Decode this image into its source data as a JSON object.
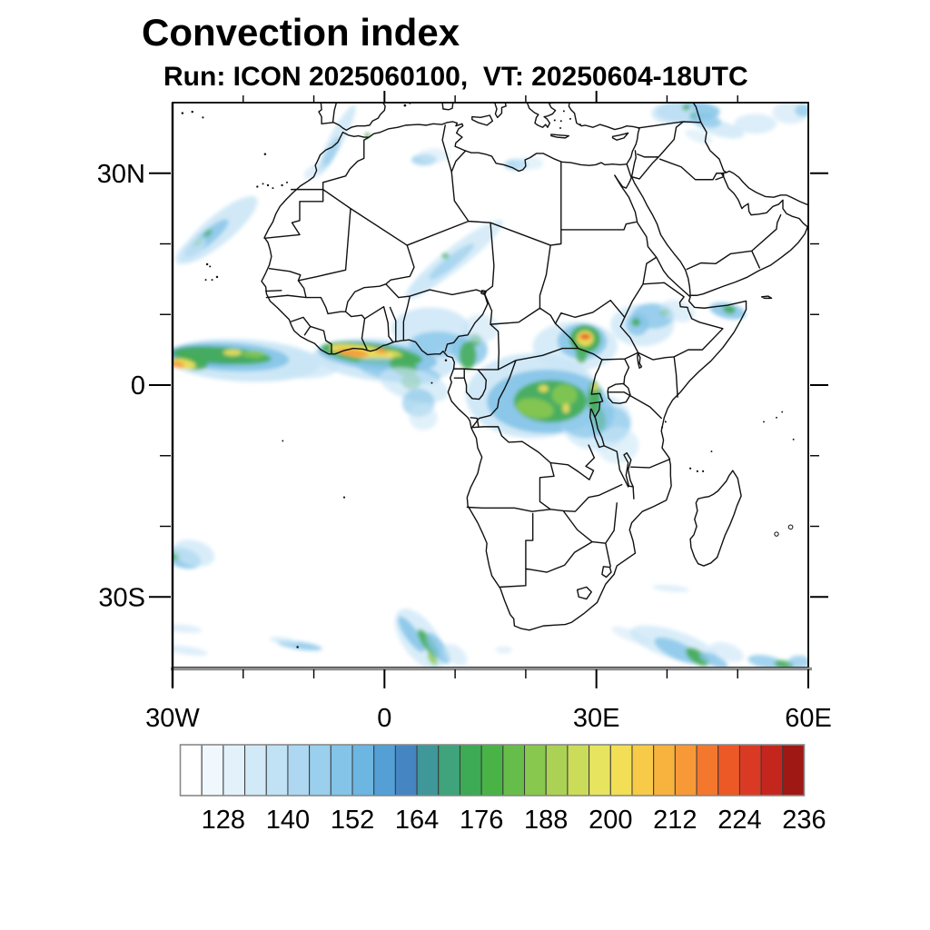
{
  "header": {
    "title": "Convection index",
    "subtitle": "Run: ICON 2025060100,  VT: 20250604-18UTC"
  },
  "chart_data": {
    "type": "heatmap",
    "title": "Convection index",
    "model_run_label": "Run: ICON 2025060100",
    "valid_time_label": "VT: 20250604-18UTC",
    "projection": "cylindrical lat-lon map of Africa",
    "extent": {
      "lon_min": -30,
      "lon_max": 60,
      "lat_min": -40,
      "lat_max": 40
    },
    "xticks_major": [
      -30,
      0,
      30,
      60
    ],
    "xtick_labels": [
      "30W",
      "0",
      "30E",
      "60E"
    ],
    "yticks_major": [
      30,
      0,
      -30
    ],
    "ytick_labels": [
      "30N",
      "0",
      "30S"
    ],
    "minor_tick_step_deg": 10,
    "grid": "off",
    "colorbar": {
      "orientation": "horizontal",
      "value_min": 120,
      "value_max": 236,
      "cell_step": 4,
      "cell_count": 29,
      "labels": [
        "128",
        "140",
        "152",
        "164",
        "176",
        "188",
        "200",
        "212",
        "224",
        "236"
      ],
      "label_values": [
        128,
        140,
        152,
        164,
        176,
        188,
        200,
        212,
        224,
        236
      ],
      "colors": [
        "#ffffff",
        "#f0f8fd",
        "#e2f1fa",
        "#d2e9f7",
        "#c1e1f4",
        "#aed8f1",
        "#9acfed",
        "#84c4e8",
        "#6cb6e1",
        "#539fd6",
        "#4585c2",
        "#3f9799",
        "#3fa47b",
        "#3daa55",
        "#49b445",
        "#67bd49",
        "#89c84e",
        "#abd255",
        "#cbdc5b",
        "#e7e45f",
        "#f2df55",
        "#f7cb47",
        "#f8b23e",
        "#f89937",
        "#f4772e",
        "#ed5827",
        "#da3a23",
        "#c4261e",
        "#9f1814"
      ]
    },
    "palette_keys": {
      "L": "#c9e5f6",
      "M": "#84c4e8",
      "D": "#539fd6",
      "G": "#43ac52",
      "g": "#8cc94f",
      "Y": "#efe05c",
      "O": "#f89937",
      "R": "#da3a23"
    },
    "blob_format": [
      "color_key",
      "lon",
      "lat",
      "rx_deg",
      "ry_deg",
      "rotate_deg",
      "opacity"
    ],
    "field_blobs": [
      [
        "L",
        -20,
        3.5,
        11,
        3,
        -3,
        0.9
      ],
      [
        "L",
        -13,
        3,
        6.5,
        2,
        -5,
        0.7
      ],
      [
        "M",
        -22,
        4,
        8.5,
        2,
        -3,
        0.9
      ],
      [
        "D",
        -24.5,
        4.2,
        6,
        1.3,
        -4,
        0.8
      ],
      [
        "G",
        -23,
        4.2,
        7,
        1.2,
        -4,
        0.9
      ],
      [
        "G",
        -27.5,
        3.2,
        2.5,
        1,
        -10,
        0.9
      ],
      [
        "Y",
        -28.5,
        3,
        1.8,
        0.7,
        -10,
        0.95
      ],
      [
        "O",
        -29.3,
        2.9,
        1,
        0.45,
        -10,
        0.9
      ],
      [
        "Y",
        -21.5,
        4.6,
        1.3,
        0.45,
        0,
        0.9
      ],
      [
        "g",
        -18.5,
        4.4,
        1.6,
        0.5,
        0,
        0.8
      ],
      [
        "L",
        0,
        3.5,
        10,
        3,
        -5,
        0.85
      ],
      [
        "M",
        -1,
        4.1,
        8.5,
        2,
        -6,
        0.9
      ],
      [
        "G",
        -1.8,
        4.4,
        7.2,
        1.5,
        -7,
        0.9
      ],
      [
        "Y",
        -3.2,
        4.7,
        4.6,
        0.9,
        -8,
        0.95
      ],
      [
        "O",
        -4.5,
        4.6,
        2.3,
        0.5,
        -8,
        0.95
      ],
      [
        "O",
        -0.5,
        4.8,
        1,
        0.35,
        -8,
        0.85
      ],
      [
        "Y",
        1.4,
        4.3,
        1.2,
        0.5,
        -15,
        0.85
      ],
      [
        "M",
        2,
        2,
        6,
        1.6,
        -10,
        0.7
      ],
      [
        "G",
        2.7,
        2.7,
        2,
        1.3,
        -20,
        0.85
      ],
      [
        "G",
        3.8,
        0.5,
        1.4,
        1.1,
        0,
        0.75
      ],
      [
        "L",
        4.2,
        0,
        5,
        2.2,
        -15,
        0.7
      ],
      [
        "M",
        4.8,
        -2.5,
        2.3,
        2,
        0,
        0.6
      ],
      [
        "L",
        5.5,
        -4.6,
        2,
        1.8,
        0,
        0.55
      ],
      [
        "L",
        6.5,
        8,
        5.5,
        3,
        0,
        0.8
      ],
      [
        "M",
        7.5,
        5.8,
        4,
        1.8,
        0,
        0.75
      ],
      [
        "M",
        12,
        5,
        2.6,
        2.3,
        0,
        0.8
      ],
      [
        "G",
        11.8,
        4.2,
        1.2,
        2,
        0,
        0.85
      ],
      [
        "G",
        12.9,
        6.4,
        0.8,
        0.8,
        0,
        0.8
      ],
      [
        "L",
        13.6,
        8,
        2.6,
        2,
        0,
        0.6
      ],
      [
        "L",
        21,
        -1.5,
        9.5,
        6,
        0,
        0.85
      ],
      [
        "M",
        23,
        -2.3,
        8.5,
        4.5,
        0,
        0.9
      ],
      [
        "L",
        30,
        -5.2,
        5,
        4,
        0,
        0.7
      ],
      [
        "M",
        28.5,
        -4,
        4,
        3.5,
        0,
        0.7
      ],
      [
        "G",
        23.5,
        -2.3,
        5.2,
        3,
        0,
        0.9
      ],
      [
        "g",
        21.3,
        -3.3,
        2.7,
        1.4,
        -10,
        0.85
      ],
      [
        "g",
        25.5,
        -1.4,
        1.8,
        1.5,
        0,
        0.8
      ],
      [
        "Y",
        22.5,
        -0.5,
        0.7,
        0.5,
        0,
        0.9
      ],
      [
        "Y",
        25.7,
        -3.3,
        0.5,
        0.7,
        0,
        0.9
      ],
      [
        "G",
        29.7,
        -1.8,
        0.9,
        2.4,
        0,
        0.9
      ],
      [
        "Y",
        29.8,
        -0.3,
        0.5,
        0.6,
        0,
        0.8
      ],
      [
        "G",
        30.3,
        -4.8,
        1,
        1.7,
        10,
        0.8
      ],
      [
        "M",
        32,
        -5.5,
        2.8,
        2.5,
        0,
        0.6
      ],
      [
        "L",
        33,
        -8.5,
        3,
        2.6,
        0,
        0.55
      ],
      [
        "L",
        27,
        5.5,
        6,
        3.5,
        0,
        0.75
      ],
      [
        "M",
        28,
        6.2,
        3.5,
        2.5,
        0,
        0.85
      ],
      [
        "G",
        28.4,
        6.5,
        2.2,
        2,
        0,
        0.95
      ],
      [
        "Y",
        28.4,
        6.6,
        1.2,
        1.1,
        0,
        0.95
      ],
      [
        "O",
        28.4,
        6.8,
        0.85,
        0.5,
        0,
        0.95
      ],
      [
        "R",
        28.4,
        6.9,
        0.7,
        0.25,
        0,
        0.95
      ],
      [
        "G",
        27.9,
        4.3,
        0.8,
        1.2,
        0,
        0.8
      ],
      [
        "L",
        36.5,
        8.5,
        4.5,
        3,
        0,
        0.75
      ],
      [
        "M",
        38,
        9.8,
        3,
        1.8,
        0,
        0.75
      ],
      [
        "M",
        35.8,
        8.6,
        1.6,
        1.6,
        0,
        0.8
      ],
      [
        "G",
        35.6,
        8.9,
        0.6,
        0.6,
        0,
        0.9
      ],
      [
        "G",
        39.7,
        10.3,
        0.6,
        0.5,
        0,
        0.85
      ],
      [
        "L",
        41.5,
        10.5,
        2.5,
        1.5,
        -15,
        0.6
      ],
      [
        "M",
        48.6,
        10.5,
        2.6,
        1.1,
        -12,
        0.85
      ],
      [
        "G",
        48.8,
        10.7,
        0.9,
        0.55,
        -12,
        0.9
      ],
      [
        "L",
        -23.5,
        22,
        7,
        2,
        40,
        0.85
      ],
      [
        "M",
        -25.2,
        20.8,
        4,
        1,
        40,
        0.8
      ],
      [
        "G",
        -26.4,
        20.2,
        0.8,
        0.4,
        40,
        0.85
      ],
      [
        "G",
        -25,
        21.5,
        0.7,
        0.35,
        40,
        0.8
      ],
      [
        "L",
        -27.5,
        19,
        2.6,
        1.2,
        40,
        0.7
      ],
      [
        "L",
        10,
        18,
        8.5,
        1.6,
        38,
        0.75
      ],
      [
        "L",
        6.5,
        15,
        4.5,
        1.2,
        38,
        0.6
      ],
      [
        "M",
        9.5,
        17.5,
        4,
        0.8,
        38,
        0.5
      ],
      [
        "G",
        8.6,
        18.3,
        0.5,
        0.4,
        0,
        0.75
      ],
      [
        "L",
        -6.8,
        34.8,
        5.5,
        1,
        62,
        0.8
      ],
      [
        "M",
        -7.6,
        32.8,
        2.6,
        0.7,
        62,
        0.6
      ],
      [
        "L",
        -9.8,
        30.3,
        1.8,
        0.9,
        30,
        0.6
      ],
      [
        "G",
        -2.4,
        35.4,
        0.45,
        0.3,
        0,
        0.85
      ],
      [
        "M",
        5.6,
        31.9,
        1.8,
        0.8,
        0,
        0.65
      ],
      [
        "L",
        7,
        32.5,
        2.2,
        1,
        0,
        0.5
      ],
      [
        "M",
        18.6,
        31.2,
        1.7,
        0.8,
        0,
        0.6
      ],
      [
        "L",
        20.5,
        31.4,
        2,
        0.9,
        0,
        0.5
      ],
      [
        "M",
        43,
        38.7,
        4.5,
        1.5,
        0,
        0.85
      ],
      [
        "L",
        40.8,
        38.5,
        3,
        1.6,
        0,
        0.8
      ],
      [
        "G",
        42.7,
        39.3,
        0.5,
        0.4,
        0,
        0.9
      ],
      [
        "G",
        43.7,
        38.2,
        0.45,
        0.35,
        0,
        0.85
      ],
      [
        "L",
        47.5,
        36.3,
        3.5,
        1.1,
        -15,
        0.75
      ],
      [
        "M",
        45.5,
        37.5,
        2.2,
        1,
        -10,
        0.7
      ],
      [
        "L",
        52.5,
        37,
        3,
        1.4,
        0,
        0.65
      ],
      [
        "L",
        57.5,
        38.6,
        2.6,
        1.6,
        0,
        0.6
      ],
      [
        "M",
        59.3,
        38.9,
        1.2,
        0.9,
        0,
        0.65
      ],
      [
        "L",
        44.5,
        35.2,
        2,
        0.8,
        -20,
        0.5
      ],
      [
        "M",
        -28.5,
        -24.5,
        2.6,
        1.4,
        -15,
        0.85
      ],
      [
        "G",
        -29.6,
        -24.2,
        0.8,
        0.5,
        0,
        0.85
      ],
      [
        "L",
        -27,
        -23.8,
        3,
        1.8,
        -15,
        0.7
      ],
      [
        "L",
        -28.5,
        -34.5,
        2.6,
        0.55,
        -5,
        0.6
      ],
      [
        "L",
        -28,
        -37.6,
        3,
        0.6,
        -8,
        0.6
      ],
      [
        "M",
        -12,
        -36.9,
        3.2,
        0.55,
        -8,
        0.8
      ],
      [
        "L",
        -14.3,
        -36.2,
        2,
        0.45,
        -8,
        0.7
      ],
      [
        "L",
        5,
        -36,
        5,
        2.5,
        -55,
        0.7
      ],
      [
        "M",
        3.8,
        -35.3,
        3,
        0.9,
        -55,
        0.85
      ],
      [
        "G",
        6.2,
        -36.6,
        2.4,
        0.75,
        -55,
        0.9
      ],
      [
        "M",
        7.6,
        -37.3,
        2.6,
        1,
        -55,
        0.8
      ],
      [
        "g",
        6.8,
        -38.8,
        1,
        0.5,
        -55,
        0.8
      ],
      [
        "L",
        10,
        -38.2,
        2,
        1.2,
        -40,
        0.6
      ],
      [
        "L",
        16.9,
        -37.5,
        1.2,
        0.5,
        0,
        0.5
      ],
      [
        "L",
        41,
        -36.8,
        6.5,
        2,
        -18,
        0.7
      ],
      [
        "M",
        41.5,
        -37.6,
        3.6,
        1.2,
        -25,
        0.8
      ],
      [
        "G",
        44.3,
        -38.5,
        1.9,
        0.9,
        -35,
        0.9
      ],
      [
        "M",
        46.6,
        -39,
        2.2,
        0.8,
        -25,
        0.8
      ],
      [
        "L",
        48.5,
        -37.8,
        2.5,
        1.2,
        -20,
        0.6
      ],
      [
        "M",
        54,
        -39.2,
        2.6,
        0.9,
        -10,
        0.75
      ],
      [
        "G",
        56.6,
        -39.6,
        1.4,
        0.6,
        -10,
        0.85
      ],
      [
        "M",
        58.7,
        -39.2,
        1.6,
        0.9,
        0,
        0.7
      ],
      [
        "L",
        40.5,
        -28.8,
        2.6,
        0.45,
        -5,
        0.6
      ],
      [
        "L",
        35,
        -35.5,
        3,
        0.8,
        -20,
        0.5
      ]
    ],
    "active_regions": [
      "ITCZ band near 2-5N from 30W across Atlantic to West African coast, green core with yellow-orange maxima near 29W and over Ivory Coast/Ghana coast",
      "Congo basin broad blue/green area 15E-33E, 0-8S with small yellow maxima",
      "South Sudan hotspot near 28E 7N with yellow/red core",
      "Ethiopia and Somali coast patches with small green cores",
      "NW Atlantic diagonal streak near 27W-19W, 18N-26N",
      "Southern-ocean streaks south of 30S near 0-12E and 35E-60E with green cores",
      "SE Turkey / N Iraq blue patch at map top near 40E-60E"
    ]
  },
  "legend": {
    "note": ""
  }
}
